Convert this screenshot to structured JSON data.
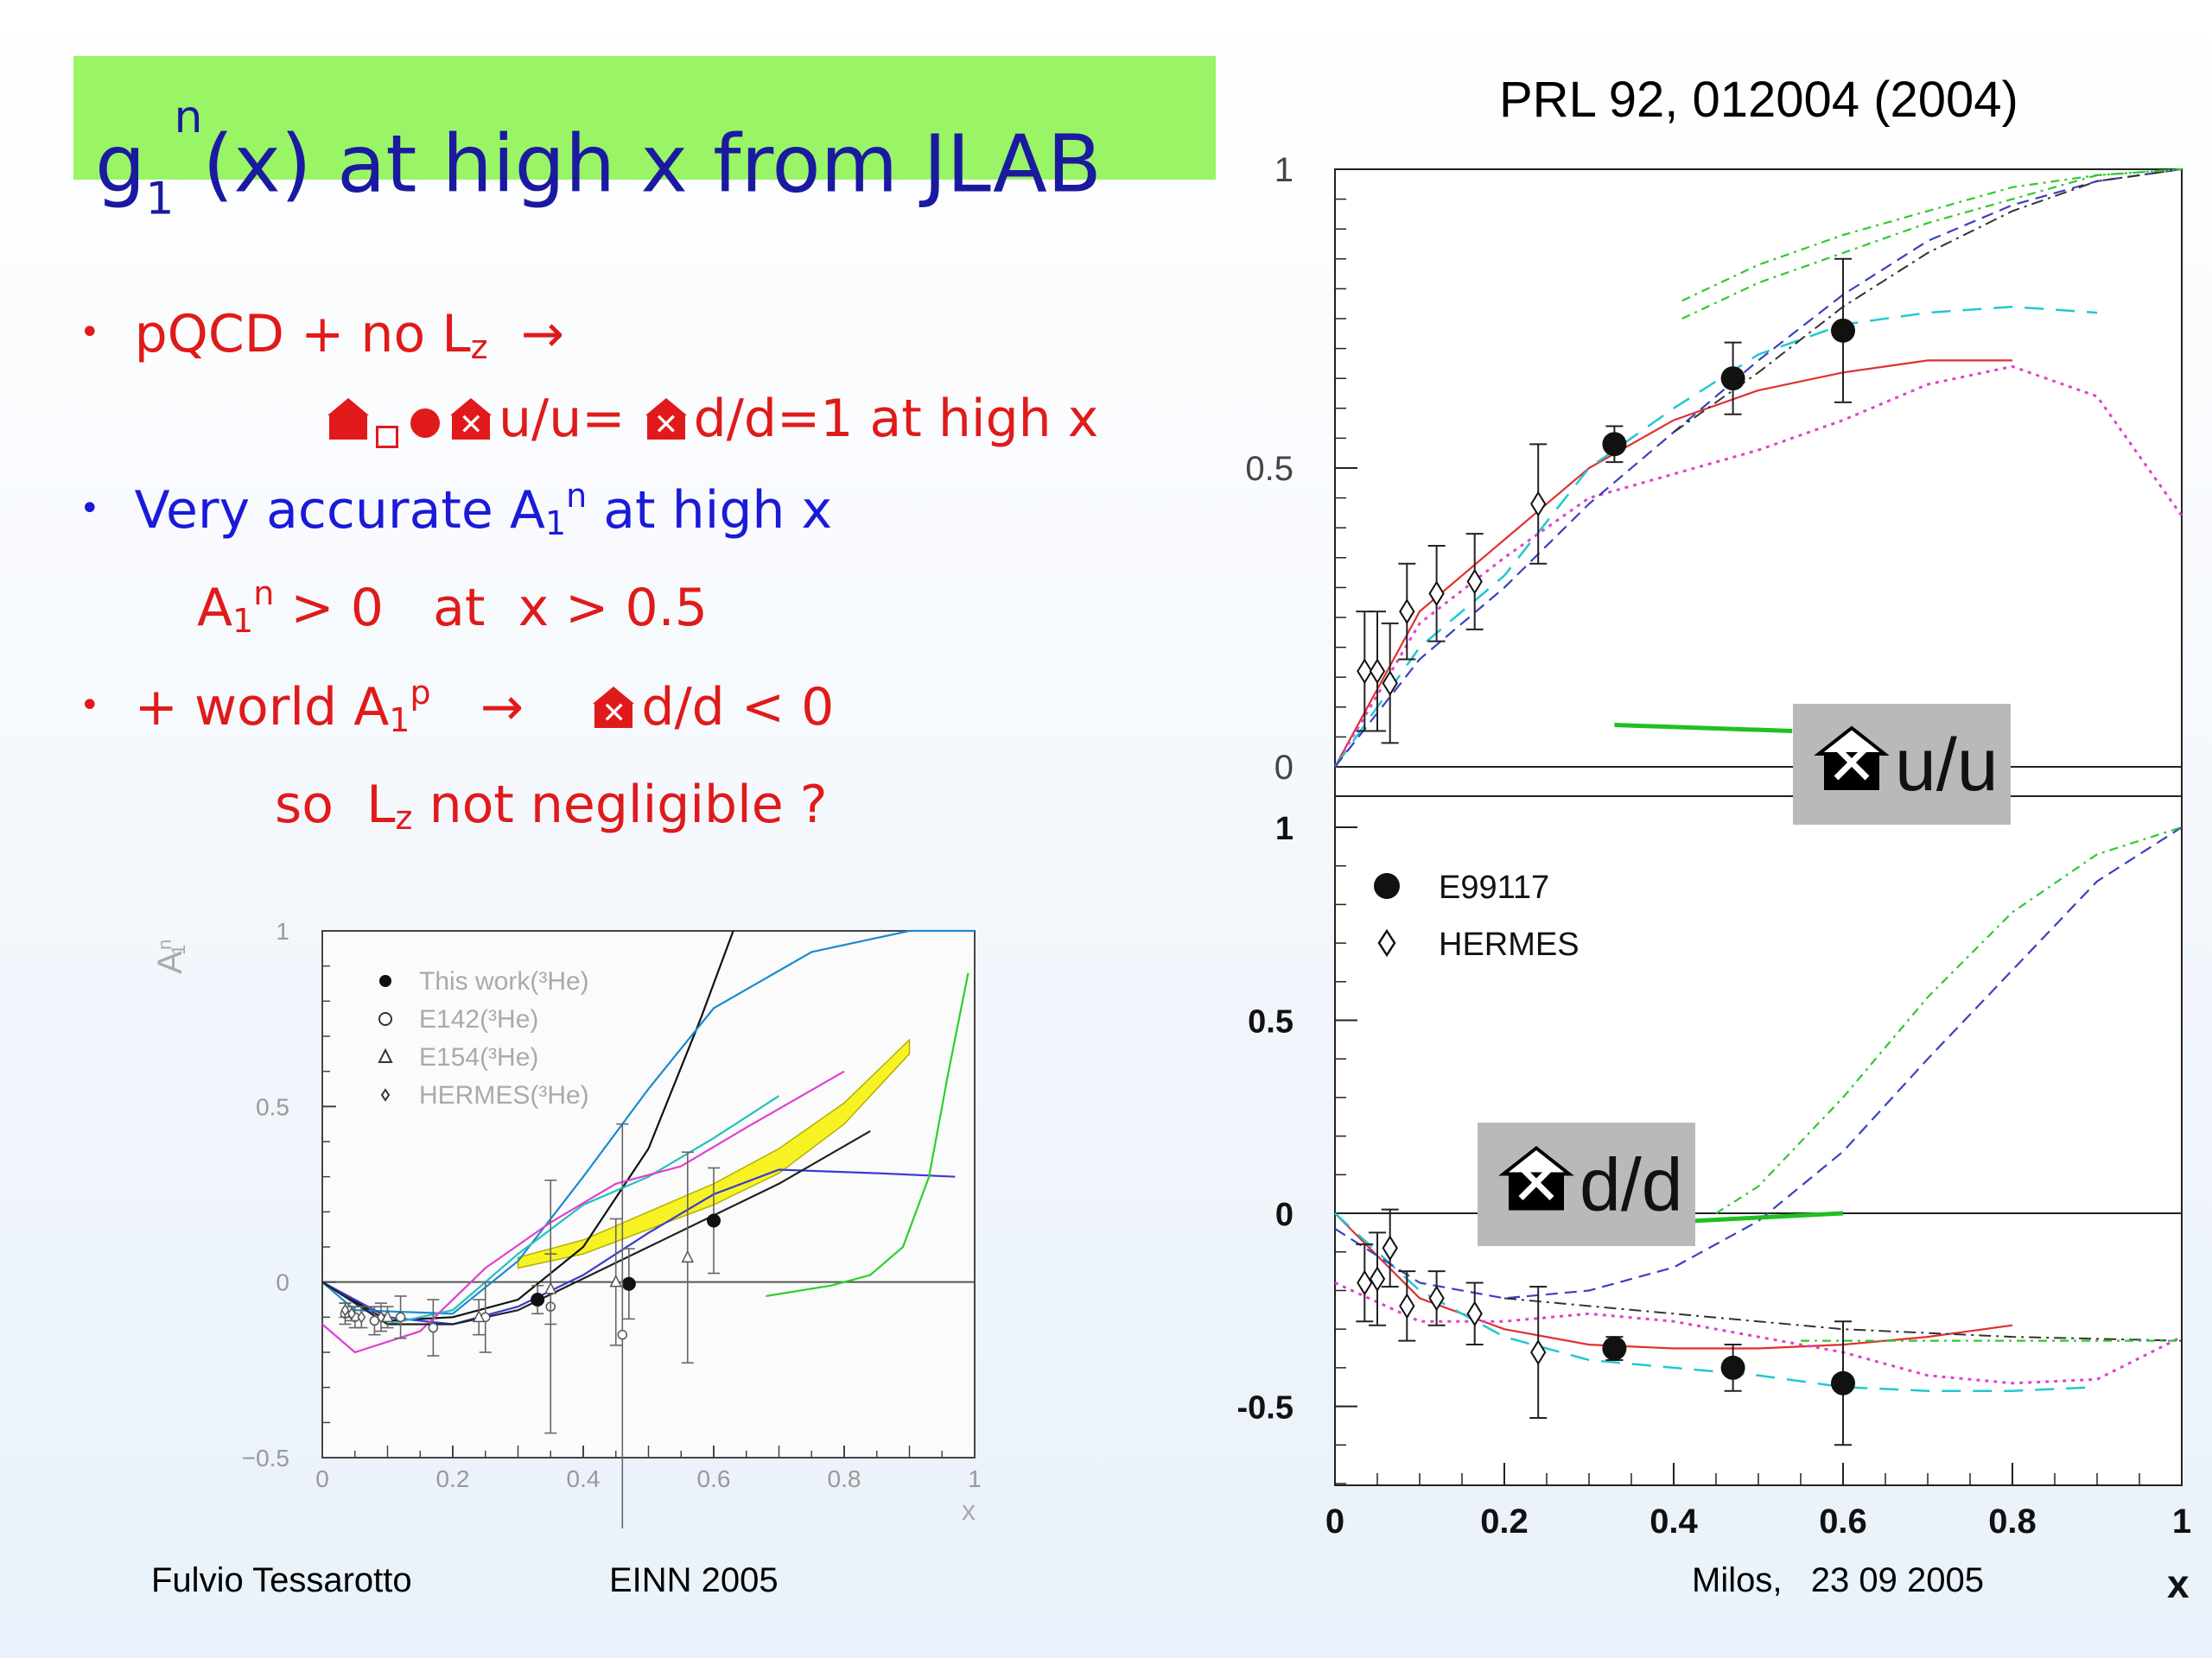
{
  "title": {
    "main": "g",
    "sub": "1",
    "sup": "n",
    "rest": "(x) at high x from JLAB"
  },
  "reference": "PRL 92, 012004 (2004)",
  "bullets": {
    "b1_text": "pQCD + no L",
    "b1_sub": "z",
    "b1_arrow": "→",
    "b1_line2_a": "u/u=",
    "b1_line2_b": "d/d=1 at high x",
    "b2_text": "Very accurate A",
    "b2_sub": "1",
    "b2_sup": "n",
    "b2_rest": "at high x",
    "b2_line2_a": "A",
    "b2_line2_sub": "1",
    "b2_line2_sup": "n",
    "b2_line2_rest": " > 0   at  x > 0.5",
    "b3_text": "+ world A",
    "b3_sub": "1",
    "b3_sup": "p",
    "b3_arrow": "→",
    "b3_rest": "d/d < 0",
    "b3_line2_a": "so  L",
    "b3_line2_sub": "z",
    "b3_line2_rest": " not negligible ?"
  },
  "footer": {
    "author": "Fulvio Tessarotto",
    "conference": "EINN 2005",
    "place_date": "Milos,   23 09 2005"
  },
  "colors": {
    "title_bg": "#99f466",
    "title_text": "#1a1aa0",
    "red": "#e01a1a",
    "blue": "#1a1ad8"
  },
  "icons": [
    "house-x-icon"
  ],
  "chart_data": [
    {
      "type": "scatter",
      "ylabel": "A1n",
      "xlabel": "x",
      "xlim": [
        0,
        1
      ],
      "ylim": [
        -0.5,
        1
      ],
      "xticks": [
        "0",
        "0.2",
        "0.4",
        "0.6",
        "0.8",
        "1"
      ],
      "yticks": [
        "−0.5",
        "0",
        "0.5",
        "1"
      ],
      "legend": {
        "placement": "top-left",
        "entries": [
          "This work(³He)",
          "E142(³He)",
          "E154(³He)",
          "HERMES(³He)"
        ]
      },
      "series": [
        {
          "name": "This work(³He)",
          "x": [
            0.33,
            0.47,
            0.6
          ],
          "y": [
            -0.05,
            -0.005,
            0.175
          ],
          "err": [
            0.04,
            0.1,
            0.15
          ]
        },
        {
          "name": "E142(³He)",
          "x": [
            0.035,
            0.05,
            0.08,
            0.12,
            0.17,
            0.25,
            0.35,
            0.46
          ],
          "y": [
            -0.09,
            -0.1,
            -0.11,
            -0.1,
            -0.13,
            -0.1,
            -0.07,
            -0.15
          ],
          "err": [
            0.03,
            0.03,
            0.04,
            0.06,
            0.08,
            0.1,
            0.36,
            0.6
          ]
        },
        {
          "name": "E154(³He)",
          "x": [
            0.1,
            0.24,
            0.35,
            0.45,
            0.56
          ],
          "y": [
            -0.1,
            -0.1,
            -0.02,
            0.0,
            0.07
          ],
          "err": [
            0.03,
            0.05,
            0.1,
            0.18,
            0.3
          ]
        },
        {
          "name": "HERMES(³He)",
          "x": [
            0.035,
            0.045,
            0.06,
            0.09
          ],
          "y": [
            -0.08,
            -0.09,
            -0.1,
            -0.1
          ],
          "err": [
            0.02,
            0.02,
            0.03,
            0.04
          ]
        }
      ]
    },
    {
      "type": "scatter",
      "panel": "upper",
      "label": "u/u",
      "xlim": [
        0,
        1
      ],
      "ylim": [
        0,
        1
      ],
      "yticks": [
        "0",
        "0.5",
        "1"
      ],
      "series": [
        {
          "name": "E99117",
          "x": [
            0.33,
            0.47,
            0.6
          ],
          "y": [
            0.54,
            0.65,
            0.73
          ],
          "err": [
            0.03,
            0.06,
            0.12
          ]
        },
        {
          "name": "HERMES",
          "x": [
            0.035,
            0.05,
            0.065,
            0.085,
            0.12,
            0.165,
            0.24
          ],
          "y": [
            0.16,
            0.16,
            0.14,
            0.26,
            0.29,
            0.31,
            0.44
          ],
          "err": [
            0.1,
            0.1,
            0.1,
            0.08,
            0.08,
            0.08,
            0.1
          ]
        }
      ]
    },
    {
      "type": "scatter",
      "panel": "lower",
      "label": "d/d",
      "xlabel": "x",
      "xlim": [
        0,
        1
      ],
      "ylim": [
        -0.7,
        1
      ],
      "xticks": [
        "0",
        "0.2",
        "0.4",
        "0.6",
        "0.8",
        "1"
      ],
      "yticks": [
        "-0.5",
        "0",
        "0.5",
        "1"
      ],
      "legend": {
        "placement": "top-left",
        "entries": [
          "E99117",
          "HERMES"
        ]
      },
      "series": [
        {
          "name": "E99117",
          "x": [
            0.33,
            0.47,
            0.6
          ],
          "y": [
            -0.35,
            -0.4,
            -0.44
          ],
          "err": [
            0.03,
            0.06,
            0.16
          ]
        },
        {
          "name": "HERMES",
          "x": [
            0.035,
            0.05,
            0.065,
            0.085,
            0.12,
            0.165,
            0.24
          ],
          "y": [
            -0.18,
            -0.17,
            -0.09,
            -0.24,
            -0.22,
            -0.26,
            -0.36
          ],
          "err": [
            0.1,
            0.12,
            0.1,
            0.09,
            0.07,
            0.08,
            0.17
          ]
        }
      ]
    }
  ]
}
